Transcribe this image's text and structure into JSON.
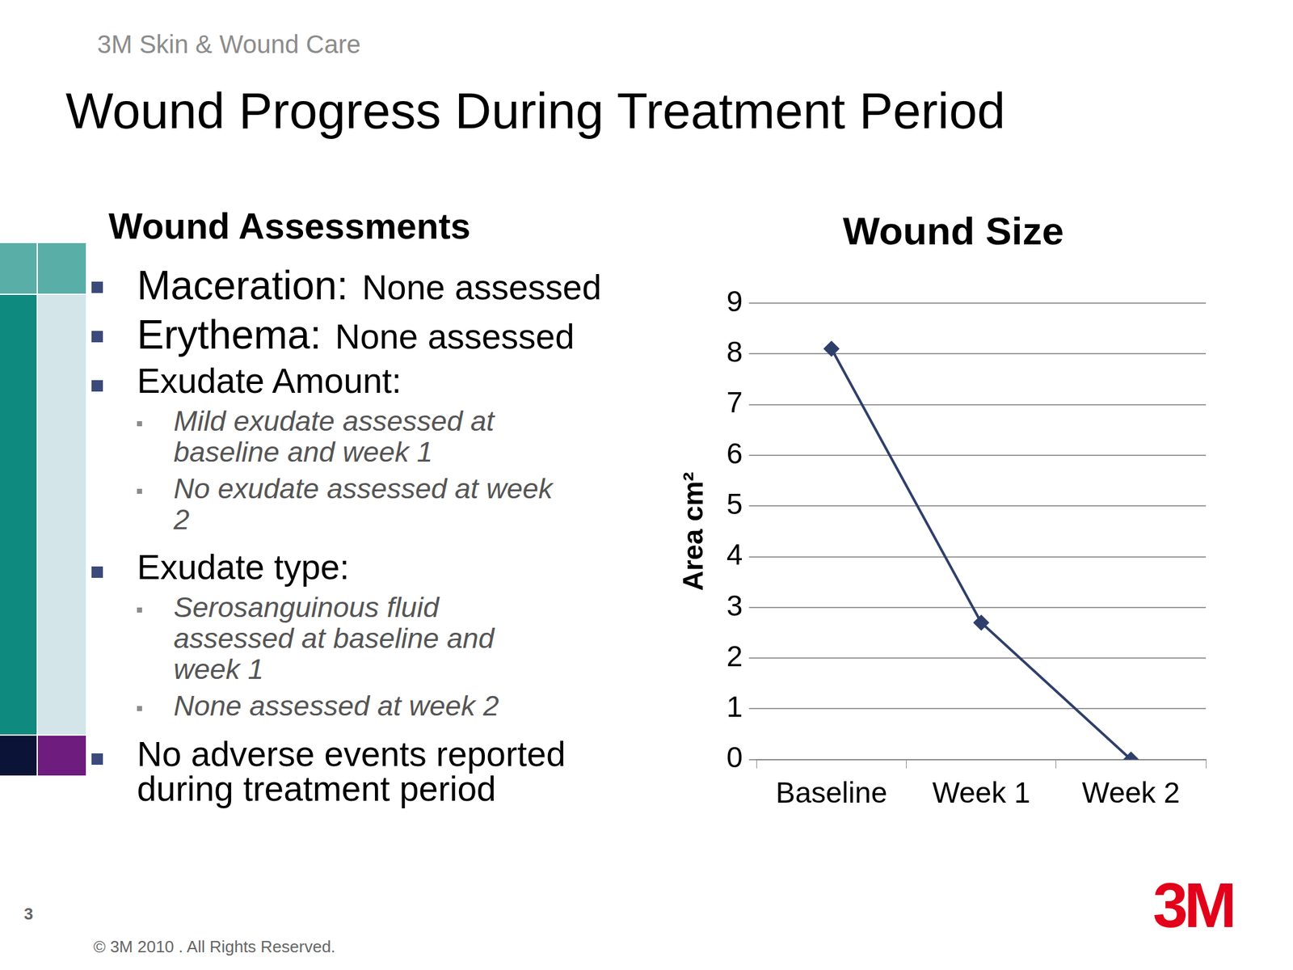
{
  "header": {
    "brand": "3M Skin & Wound Care",
    "title": "Wound Progress During Treatment Period"
  },
  "assessments": {
    "heading": "Wound Assessments",
    "items": [
      {
        "label": "Maceration:",
        "value": "None assessed"
      },
      {
        "label": "Erythema:",
        "value": "None assessed"
      },
      {
        "label": "Exudate Amount:",
        "sub": [
          "Mild exudate assessed at baseline and week 1",
          "No exudate assessed at week 2"
        ]
      },
      {
        "label": "Exudate type:",
        "sub": [
          "Serosanguinous fluid assessed at baseline and week 1",
          "None assessed at week 2"
        ]
      },
      {
        "label": "No adverse events reported during treatment period"
      }
    ]
  },
  "chart_data": {
    "type": "line",
    "title": "Wound Size",
    "y_label": "Area cm²",
    "categories": [
      "Baseline",
      "Week 1",
      "Week 2"
    ],
    "values": [
      8.1,
      2.7,
      0
    ],
    "color": "#2f3f6b",
    "marker": "diamond",
    "ylim": [
      0,
      9
    ],
    "yticks": [
      0,
      1,
      2,
      3,
      4,
      5,
      6,
      7,
      8,
      9
    ],
    "grid": true
  },
  "footer": {
    "page": "3",
    "copyright": "© 3M 2010 . All Rights Reserved.",
    "logo": "3M"
  }
}
